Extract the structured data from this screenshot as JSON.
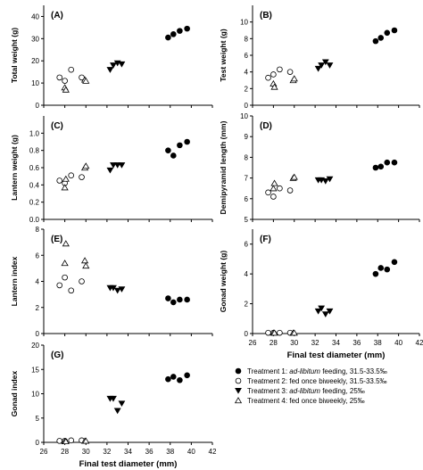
{
  "chart_data": [
    {
      "type": "scatter",
      "panel_label": "(A)",
      "xlabel": "",
      "ylabel": "Total weight (g)",
      "xlim": [
        26,
        42
      ],
      "ylim": [
        0,
        45
      ],
      "yticks": [
        0,
        10,
        20,
        30,
        40
      ],
      "xticks": [
        26,
        28,
        30,
        32,
        34,
        36,
        38,
        40,
        42
      ],
      "show_x_tick_labels": false,
      "series": [
        {
          "name": "Treatment 1: ad-libitum feeding, 31.5-33.5‰",
          "marker": "filled-circle",
          "x": [
            37.8,
            38.3,
            38.9,
            39.6
          ],
          "y": [
            30.5,
            32.0,
            33.5,
            34.5
          ]
        },
        {
          "name": "Treatment 2: fed once biweekly, 31.5-33.5‰",
          "marker": "open-circle",
          "x": [
            27.5,
            28.0,
            28.6,
            29.6
          ],
          "y": [
            12.5,
            11.0,
            16.0,
            12.5
          ]
        },
        {
          "name": "Treatment 3: ad-libitum feeding, 25‰",
          "marker": "filled-triangle-down",
          "x": [
            32.3,
            32.6,
            33.0,
            33.4
          ],
          "y": [
            16.0,
            18.0,
            19.0,
            18.5
          ]
        },
        {
          "name": "Treatment 4: fed once biweekly, 25‰",
          "marker": "open-triangle-up",
          "x": [
            28.0,
            28.1,
            29.9,
            30.0
          ],
          "y": [
            8.0,
            7.0,
            11.5,
            11.0
          ]
        }
      ]
    },
    {
      "type": "scatter",
      "panel_label": "(B)",
      "xlabel": "",
      "ylabel": "Test weight (g)",
      "xlim": [
        26,
        42
      ],
      "ylim": [
        0,
        12
      ],
      "yticks": [
        0,
        2,
        4,
        6,
        8,
        10
      ],
      "xticks": [
        26,
        28,
        30,
        32,
        34,
        36,
        38,
        40,
        42
      ],
      "show_x_tick_labels": false,
      "series": [
        {
          "name": "Treatment 1: ad-libitum feeding, 31.5-33.5‰",
          "marker": "filled-circle",
          "x": [
            37.8,
            38.3,
            38.9,
            39.6
          ],
          "y": [
            7.7,
            8.1,
            8.7,
            9.0
          ]
        },
        {
          "name": "Treatment 2: fed once biweekly, 31.5-33.5‰",
          "marker": "open-circle",
          "x": [
            27.5,
            28.0,
            28.6,
            29.6
          ],
          "y": [
            3.3,
            3.7,
            4.3,
            4.0
          ]
        },
        {
          "name": "Treatment 3: ad-libitum feeding, 25‰",
          "marker": "filled-triangle-down",
          "x": [
            32.3,
            32.6,
            33.0,
            33.4
          ],
          "y": [
            4.4,
            4.8,
            5.2,
            4.8
          ]
        },
        {
          "name": "Treatment 4: fed once biweekly, 25‰",
          "marker": "open-triangle-up",
          "x": [
            28.0,
            28.1,
            29.9,
            30.0
          ],
          "y": [
            2.6,
            2.2,
            3.0,
            3.2
          ]
        }
      ]
    },
    {
      "type": "scatter",
      "panel_label": "(C)",
      "xlabel": "",
      "ylabel": "Lantern weight (g)",
      "xlim": [
        26,
        42
      ],
      "ylim": [
        0,
        1.2
      ],
      "yticks": [
        0.0,
        0.2,
        0.4,
        0.6,
        0.8,
        1.0
      ],
      "xticks": [
        26,
        28,
        30,
        32,
        34,
        36,
        38,
        40,
        42
      ],
      "show_x_tick_labels": false,
      "series": [
        {
          "name": "Treatment 1: ad-libitum feeding, 31.5-33.5‰",
          "marker": "filled-circle",
          "x": [
            37.8,
            38.3,
            38.9,
            39.6
          ],
          "y": [
            0.8,
            0.74,
            0.86,
            0.9
          ]
        },
        {
          "name": "Treatment 2: fed once biweekly, 31.5-33.5‰",
          "marker": "open-circle",
          "x": [
            27.5,
            28.0,
            28.6,
            29.6
          ],
          "y": [
            0.45,
            0.42,
            0.51,
            0.49
          ]
        },
        {
          "name": "Treatment 3: ad-libitum feeding, 25‰",
          "marker": "filled-triangle-down",
          "x": [
            32.3,
            32.6,
            33.0,
            33.4
          ],
          "y": [
            0.57,
            0.63,
            0.63,
            0.63
          ]
        },
        {
          "name": "Treatment 4: fed once biweekly, 25‰",
          "marker": "open-triangle-up",
          "x": [
            28.0,
            28.1,
            29.9,
            30.0
          ],
          "y": [
            0.37,
            0.47,
            0.6,
            0.62
          ]
        }
      ]
    },
    {
      "type": "scatter",
      "panel_label": "(D)",
      "xlabel": "",
      "ylabel": "Demipyramid length (mm)",
      "xlim": [
        26,
        42
      ],
      "ylim": [
        5,
        10
      ],
      "yticks": [
        5,
        6,
        7,
        8,
        9,
        10
      ],
      "xticks": [
        26,
        28,
        30,
        32,
        34,
        36,
        38,
        40,
        42
      ],
      "show_x_tick_labels": false,
      "series": [
        {
          "name": "Treatment 1: ad-libitum feeding, 31.5-33.5‰",
          "marker": "filled-circle",
          "x": [
            37.8,
            38.3,
            38.9,
            39.6
          ],
          "y": [
            7.5,
            7.55,
            7.75,
            7.75
          ]
        },
        {
          "name": "Treatment 2: fed once biweekly, 31.5-33.5‰",
          "marker": "open-circle",
          "x": [
            27.5,
            28.0,
            28.6,
            29.6
          ],
          "y": [
            6.3,
            6.1,
            6.5,
            6.4
          ]
        },
        {
          "name": "Treatment 3: ad-libitum feeding, 25‰",
          "marker": "filled-triangle-down",
          "x": [
            32.3,
            32.6,
            33.0,
            33.4
          ],
          "y": [
            6.9,
            6.9,
            6.85,
            6.95
          ]
        },
        {
          "name": "Treatment 4: fed once biweekly, 25‰",
          "marker": "open-triangle-up",
          "x": [
            28.0,
            28.1,
            29.9,
            30.0
          ],
          "y": [
            6.5,
            6.75,
            7.0,
            7.05
          ]
        }
      ]
    },
    {
      "type": "scatter",
      "panel_label": "(E)",
      "xlabel": "",
      "ylabel": "Lantern index",
      "xlim": [
        26,
        42
      ],
      "ylim": [
        0,
        8
      ],
      "yticks": [
        0,
        2,
        4,
        6,
        8
      ],
      "xticks": [
        26,
        28,
        30,
        32,
        34,
        36,
        38,
        40,
        42
      ],
      "show_x_tick_labels": false,
      "series": [
        {
          "name": "Treatment 1: ad-libitum feeding, 31.5-33.5‰",
          "marker": "filled-circle",
          "x": [
            37.8,
            38.3,
            38.9,
            39.6
          ],
          "y": [
            2.7,
            2.4,
            2.6,
            2.6
          ]
        },
        {
          "name": "Treatment 2: fed once biweekly, 31.5-33.5‰",
          "marker": "open-circle",
          "x": [
            27.5,
            28.0,
            28.6,
            29.6
          ],
          "y": [
            3.7,
            4.3,
            3.3,
            4.0
          ]
        },
        {
          "name": "Treatment 3: ad-libitum feeding, 25‰",
          "marker": "filled-triangle-down",
          "x": [
            32.3,
            32.6,
            33.0,
            33.4
          ],
          "y": [
            3.5,
            3.5,
            3.3,
            3.4
          ]
        },
        {
          "name": "Treatment 4: fed once biweekly, 25‰",
          "marker": "open-triangle-up",
          "x": [
            28.0,
            28.1,
            29.9,
            30.0
          ],
          "y": [
            5.4,
            6.9,
            5.6,
            5.2
          ]
        }
      ]
    },
    {
      "type": "scatter",
      "panel_label": "(F)",
      "xlabel": "Final test diameter (mm)",
      "ylabel": "Gonad weight (g)",
      "xlim": [
        26,
        42
      ],
      "ylim": [
        0,
        7
      ],
      "yticks": [
        0,
        2,
        4,
        6
      ],
      "xticks": [
        26,
        28,
        30,
        32,
        34,
        36,
        38,
        40,
        42
      ],
      "show_x_tick_labels": true,
      "series": [
        {
          "name": "Treatment 1: ad-libitum feeding, 31.5-33.5‰",
          "marker": "filled-circle",
          "x": [
            37.8,
            38.3,
            38.9,
            39.6
          ],
          "y": [
            4.0,
            4.4,
            4.3,
            4.8
          ]
        },
        {
          "name": "Treatment 2: fed once biweekly, 31.5-33.5‰",
          "marker": "open-circle",
          "x": [
            27.5,
            28.0,
            28.6,
            29.6
          ],
          "y": [
            0.05,
            0.05,
            0.05,
            0.05
          ]
        },
        {
          "name": "Treatment 3: ad-libitum feeding, 25‰",
          "marker": "filled-triangle-down",
          "x": [
            32.3,
            32.6,
            33.0,
            33.4
          ],
          "y": [
            1.5,
            1.7,
            1.3,
            1.5
          ]
        },
        {
          "name": "Treatment 4: fed once biweekly, 25‰",
          "marker": "open-triangle-up",
          "x": [
            28.0,
            28.1,
            29.9,
            30.0
          ],
          "y": [
            0.05,
            0.05,
            0.05,
            0.05
          ]
        }
      ]
    },
    {
      "type": "scatter",
      "panel_label": "(G)",
      "xlabel": "Final test diameter (mm)",
      "ylabel": "Gonad index",
      "xlim": [
        26,
        42
      ],
      "ylim": [
        0,
        20
      ],
      "yticks": [
        0,
        5,
        10,
        15,
        20
      ],
      "xticks": [
        26,
        28,
        30,
        32,
        34,
        36,
        38,
        40,
        42
      ],
      "show_x_tick_labels": true,
      "series": [
        {
          "name": "Treatment 1: ad-libitum feeding, 31.5-33.5‰",
          "marker": "filled-circle",
          "x": [
            37.8,
            38.3,
            38.9,
            39.6
          ],
          "y": [
            13.0,
            13.5,
            12.8,
            13.8
          ]
        },
        {
          "name": "Treatment 2: fed once biweekly, 31.5-33.5‰",
          "marker": "open-circle",
          "x": [
            27.5,
            28.0,
            28.6,
            29.6
          ],
          "y": [
            0.3,
            0.3,
            0.4,
            0.4
          ]
        },
        {
          "name": "Treatment 3: ad-libitum feeding, 25‰",
          "marker": "filled-triangle-down",
          "x": [
            32.3,
            32.6,
            33.0,
            33.4
          ],
          "y": [
            9.0,
            9.0,
            6.5,
            8.0
          ]
        },
        {
          "name": "Treatment 4: fed once biweekly, 25‰",
          "marker": "open-triangle-up",
          "x": [
            28.0,
            28.1,
            29.9,
            30.0
          ],
          "y": [
            0.2,
            0.2,
            0.3,
            0.3
          ]
        }
      ]
    }
  ],
  "legend": {
    "placement": "bottom-right",
    "entries": [
      {
        "marker": "filled-circle",
        "prefix": "Treatment 1: ",
        "italic": "ad-libitum",
        "suffix": " feeding, 31.5-33.5‰"
      },
      {
        "marker": "open-circle",
        "prefix": "Treatment 2: fed once biweekly, 31.5-33.5‰",
        "italic": "",
        "suffix": ""
      },
      {
        "marker": "filled-triangle-down",
        "prefix": "Treatment 3: ",
        "italic": "ad-libitum",
        "suffix": " feeding, 25‰"
      },
      {
        "marker": "open-triangle-up",
        "prefix": "Treatment 4: fed once biweekly, 25‰",
        "italic": "",
        "suffix": ""
      }
    ]
  }
}
